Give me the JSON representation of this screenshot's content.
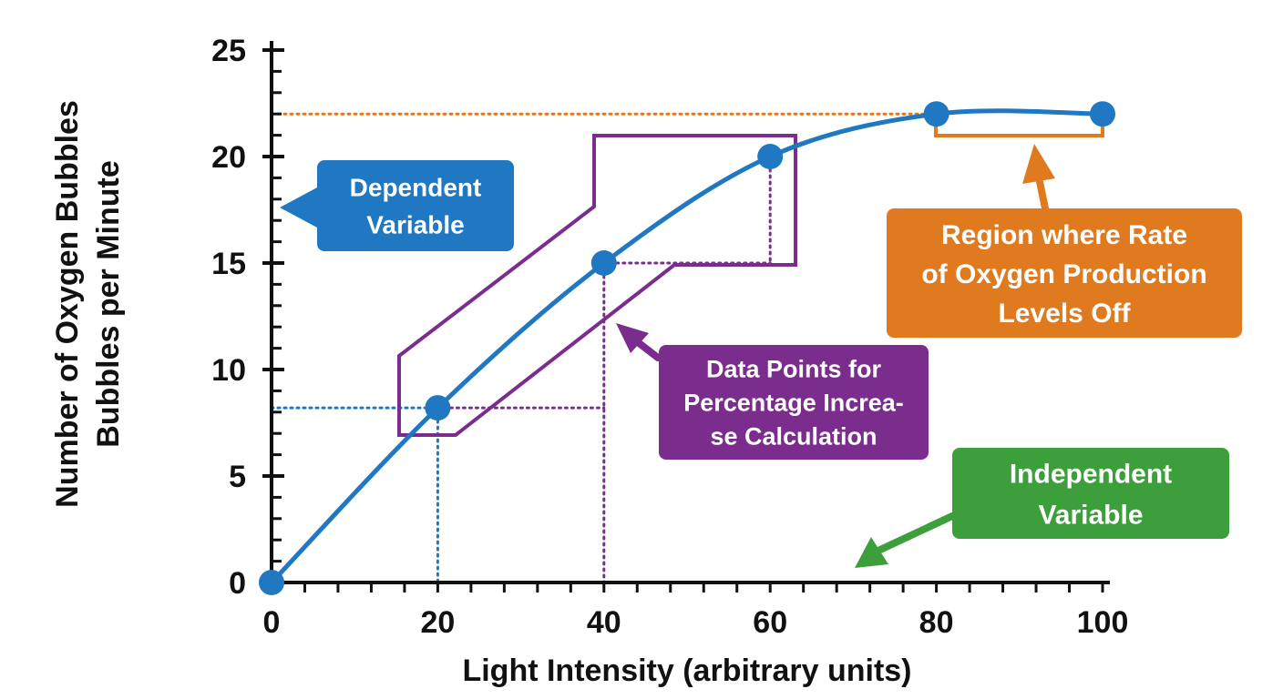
{
  "chart_data": {
    "type": "line",
    "xlabel": "Light Intensity (arbitrary units)",
    "ylabel_lines": [
      "Number of Oxygen Bubbles",
      "Bubbles per Minute"
    ],
    "xlim": [
      0,
      100
    ],
    "ylim": [
      0,
      25
    ],
    "x_ticks": [
      0,
      20,
      40,
      60,
      80,
      100
    ],
    "y_ticks": [
      0,
      5,
      10,
      15,
      20,
      25
    ],
    "x_minor_step": 4,
    "y_minor_step": 1,
    "grid": false,
    "series": [
      {
        "x": [
          0,
          20,
          40,
          60,
          80,
          100
        ],
        "values": [
          0,
          8.2,
          15,
          20,
          22,
          22
        ],
        "color": "#1f78c1"
      }
    ],
    "reference_lines": {
      "plateau_level": 22,
      "blue_point": [
        20,
        8.2
      ],
      "purple_point": [
        40,
        15
      ],
      "purple_point_2": [
        60,
        20
      ],
      "colors": {
        "orange": "#e07a1f",
        "blue": "#1f78c1",
        "purple": "#7b2d8e"
      }
    },
    "annotations": [
      {
        "id": "dependent",
        "lines": [
          "Dependent",
          "Variable"
        ],
        "color": "#1f78c1"
      },
      {
        "id": "data-points",
        "lines": [
          "Data Points for",
          "Percentage Increa-",
          "se Calculation"
        ],
        "color": "#7b2d8e"
      },
      {
        "id": "plateau",
        "lines": [
          "Region where Rate",
          "of Oxygen Production",
          "Levels Off"
        ],
        "color": "#e07a1f"
      },
      {
        "id": "independent",
        "lines": [
          "Independent",
          "Variable"
        ],
        "color": "#3c9f3c"
      }
    ]
  }
}
